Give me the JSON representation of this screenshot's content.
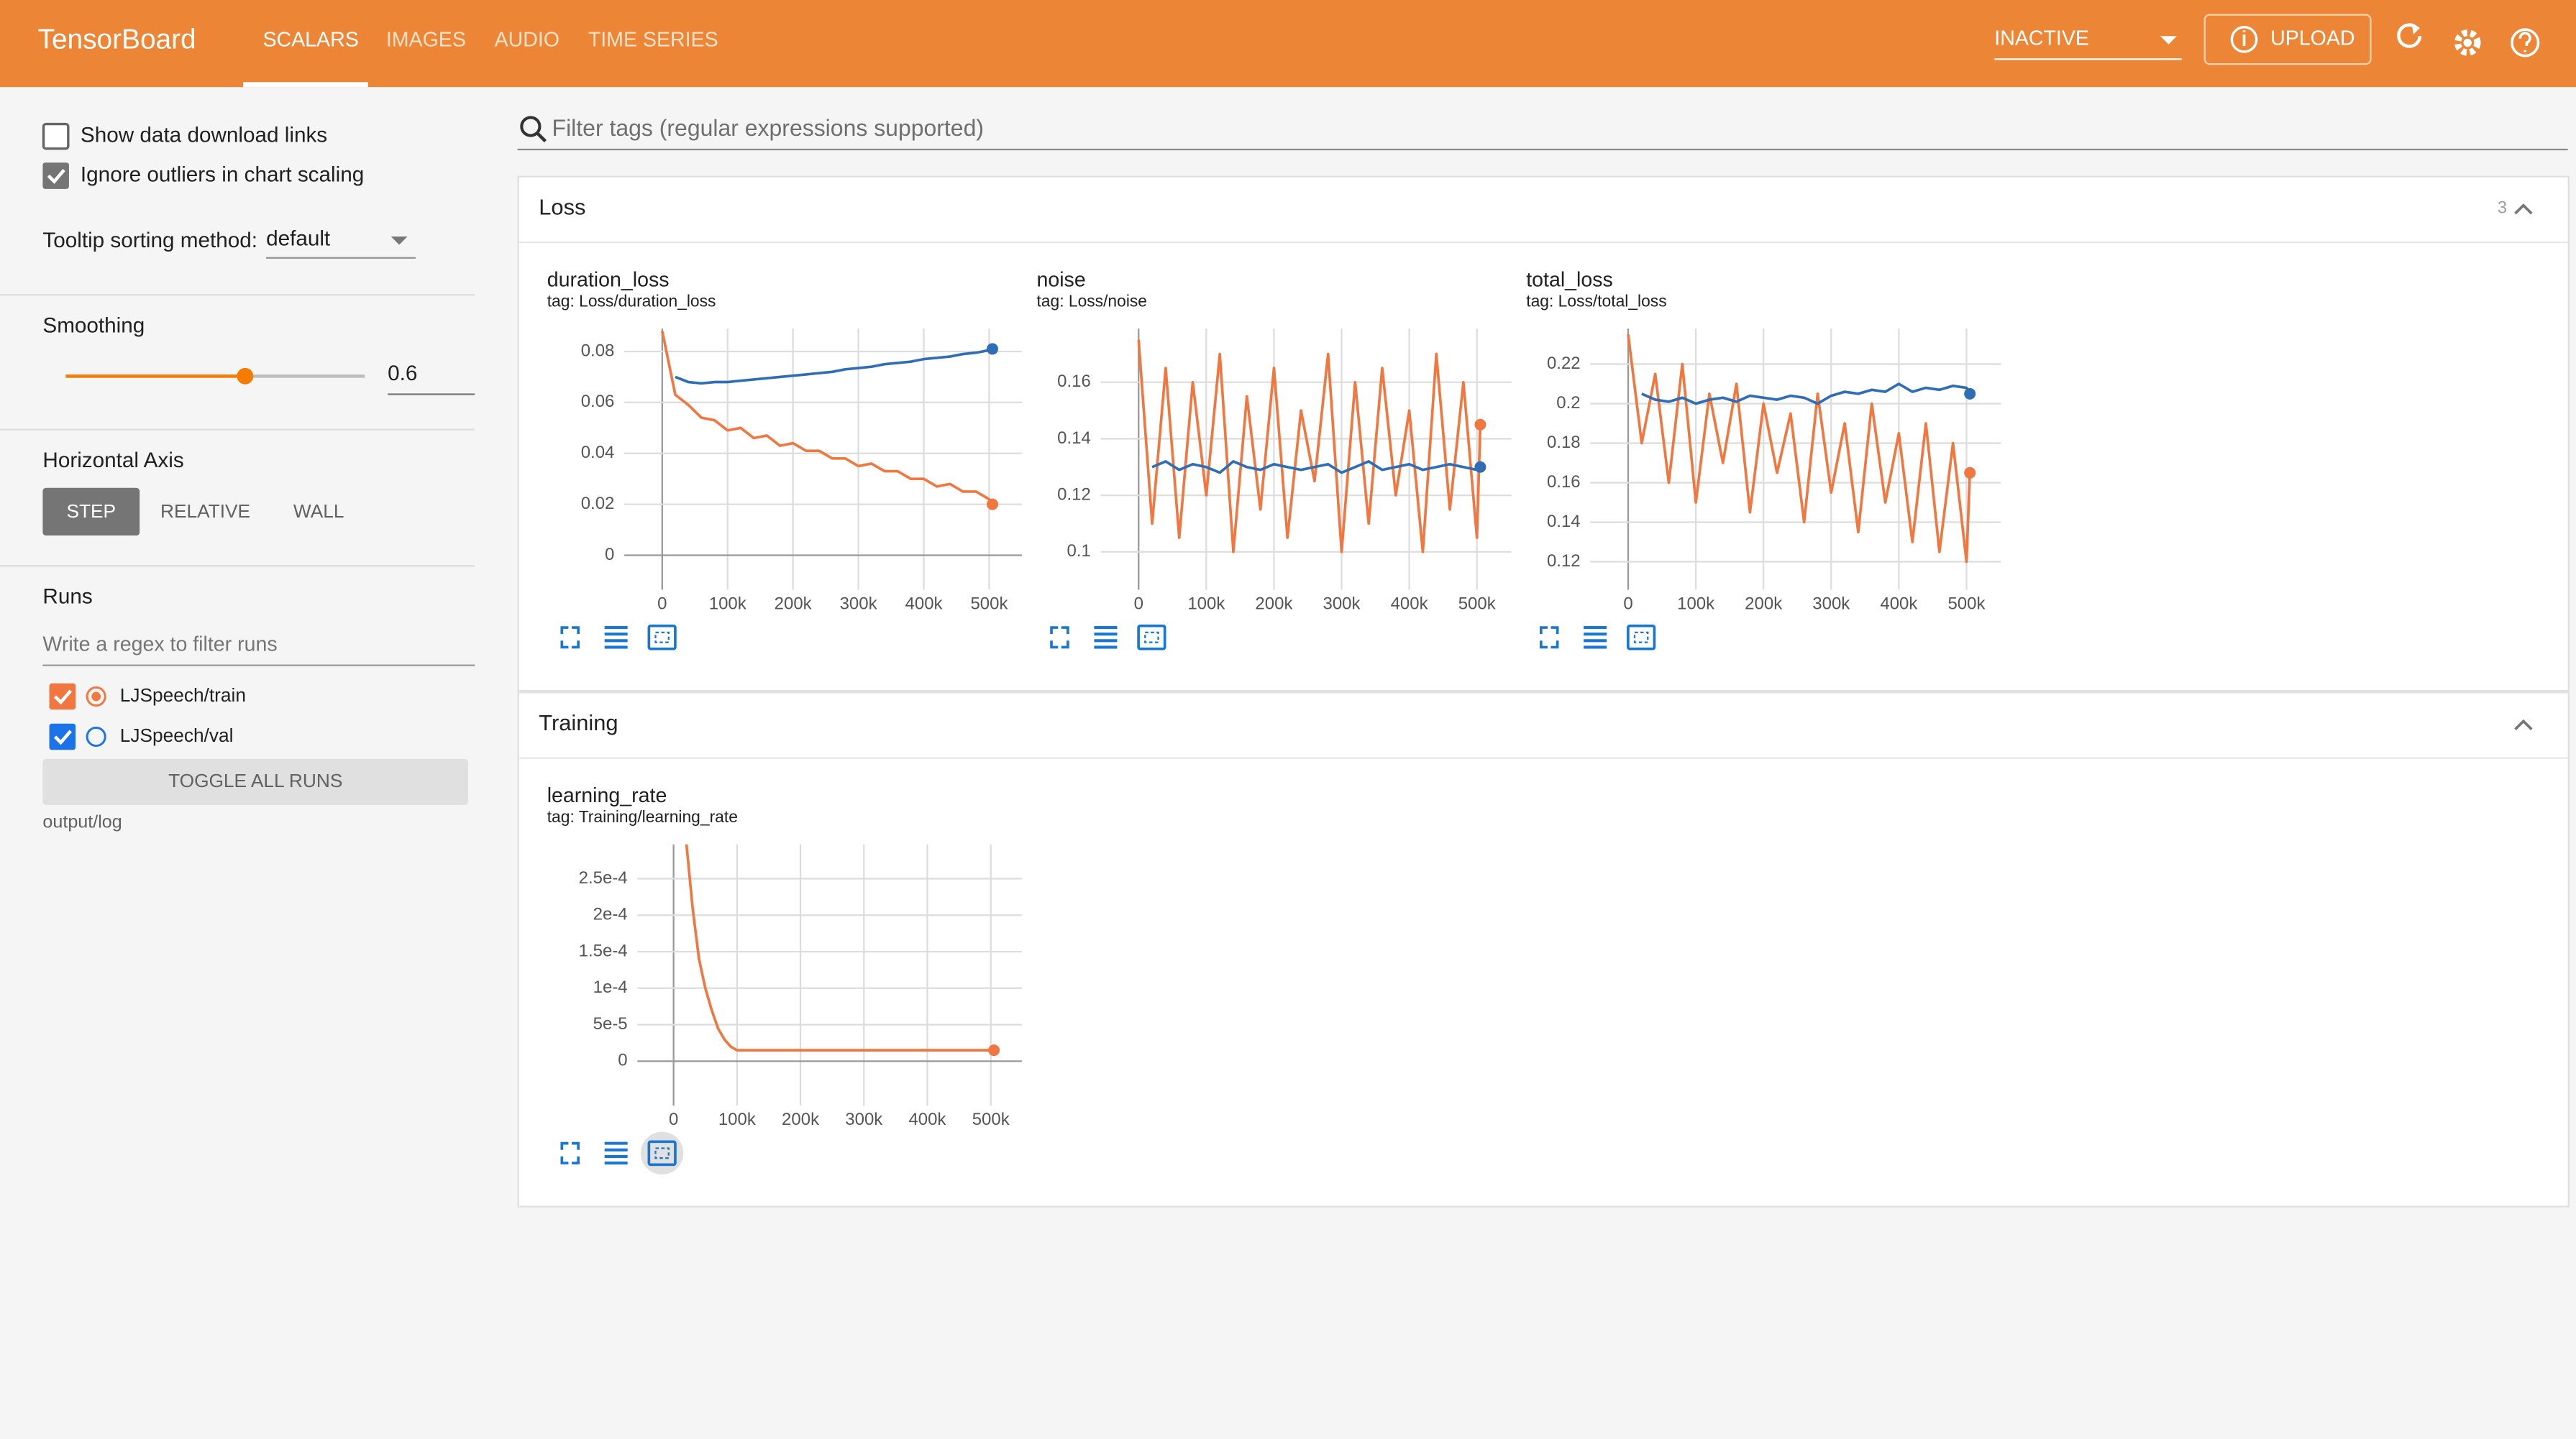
{
  "header": {
    "title": "TensorBoard",
    "tabs": [
      "SCALARS",
      "IMAGES",
      "AUDIO",
      "TIME SERIES"
    ],
    "status": "INACTIVE",
    "upload": "UPLOAD"
  },
  "sidebar": {
    "show_download": "Show data download links",
    "ignore_outliers": "Ignore outliers in chart scaling",
    "tooltip_label": "Tooltip sorting method:",
    "tooltip_value": "default",
    "smoothing_label": "Smoothing",
    "smoothing_value": 0.6,
    "horizontal_axis_label": "Horizontal Axis",
    "axis_options": [
      "STEP",
      "RELATIVE",
      "WALL"
    ],
    "runs_label": "Runs",
    "runs_filter_placeholder": "Write a regex to filter runs",
    "runs": [
      {
        "name": "LJSpeech/train",
        "color": "#f0773f"
      },
      {
        "name": "LJSpeech/val",
        "color": "#1a73e8"
      }
    ],
    "toggle": "TOGGLE ALL RUNS",
    "log_dir": "output/log"
  },
  "filter_placeholder": "Filter tags (regular expressions supported)",
  "sections": [
    {
      "title": "Loss",
      "count": 3,
      "charts": [
        {
          "type": "line",
          "title": "duration_loss",
          "tag": "tag: Loss/duration_loss",
          "x": [
            0,
            20000,
            40000,
            60000,
            80000,
            100000,
            120000,
            140000,
            160000,
            180000,
            200000,
            220000,
            240000,
            260000,
            280000,
            300000,
            320000,
            340000,
            360000,
            380000,
            400000,
            420000,
            440000,
            460000,
            480000,
            500000,
            505000
          ],
          "series": [
            {
              "color": "#f0773f",
              "values": [
                0.088,
                0.063,
                0.059,
                0.054,
                0.053,
                0.049,
                0.05,
                0.046,
                0.047,
                0.043,
                0.044,
                0.041,
                0.041,
                0.038,
                0.038,
                0.035,
                0.036,
                0.033,
                0.033,
                0.03,
                0.03,
                0.027,
                0.028,
                0.025,
                0.025,
                0.022,
                0.02
              ]
            },
            {
              "color": "#2f6db5",
              "values": [
                null,
                0.07,
                0.068,
                0.0675,
                0.068,
                0.068,
                0.0685,
                0.069,
                0.0695,
                0.07,
                0.0705,
                0.071,
                0.0715,
                0.072,
                0.073,
                0.0735,
                0.074,
                0.075,
                0.0755,
                0.076,
                0.077,
                0.0775,
                0.078,
                0.079,
                0.0795,
                0.0805,
                0.081
              ]
            }
          ],
          "xlim": [
            -58000,
            550000
          ],
          "ylim": [
            -0.0103,
            0.089
          ],
          "xticks": [
            0,
            {
              "value": 100000,
              "label": "100k"
            },
            {
              "value": 200000,
              "label": "200k"
            },
            {
              "value": 300000,
              "label": "300k"
            },
            {
              "value": 400000,
              "label": "400k"
            },
            {
              "value": 500000,
              "label": "500k"
            }
          ],
          "yticks": [
            0,
            0.02,
            0.04,
            0.06,
            0.08
          ],
          "grid": true
        },
        {
          "type": "line",
          "title": "noise",
          "tag": "tag: Loss/noise",
          "x": [
            0,
            20000,
            40000,
            60000,
            80000,
            100000,
            120000,
            140000,
            160000,
            180000,
            200000,
            220000,
            240000,
            260000,
            280000,
            300000,
            320000,
            340000,
            360000,
            380000,
            400000,
            420000,
            440000,
            460000,
            480000,
            500000,
            505000
          ],
          "series": [
            {
              "color": "#f0773f",
              "values": [
                0.175,
                0.11,
                0.165,
                0.105,
                0.16,
                0.12,
                0.17,
                0.1,
                0.155,
                0.115,
                0.165,
                0.105,
                0.15,
                0.125,
                0.17,
                0.1,
                0.16,
                0.11,
                0.165,
                0.12,
                0.15,
                0.1,
                0.17,
                0.115,
                0.16,
                0.105,
                0.145
              ]
            },
            {
              "color": "#2f6db5",
              "values": [
                null,
                0.13,
                0.132,
                0.129,
                0.131,
                0.13,
                0.128,
                0.132,
                0.13,
                0.129,
                0.131,
                0.13,
                0.129,
                0.13,
                0.131,
                0.128,
                0.13,
                0.132,
                0.129,
                0.13,
                0.131,
                0.129,
                0.13,
                0.131,
                0.13,
                0.129,
                0.13
              ]
            }
          ],
          "xlim": [
            -56000,
            551000
          ],
          "ylim": [
            0.0895,
            0.179
          ],
          "xticks": [
            0,
            {
              "value": 100000,
              "label": "100k"
            },
            {
              "value": 200000,
              "label": "200k"
            },
            {
              "value": 300000,
              "label": "300k"
            },
            {
              "value": 400000,
              "label": "400k"
            },
            {
              "value": 500000,
              "label": "500k"
            }
          ],
          "yticks": [
            0.1,
            0.12,
            0.14,
            0.16
          ],
          "grid": true
        },
        {
          "type": "line",
          "title": "total_loss",
          "tag": "tag: Loss/total_loss",
          "x": [
            0,
            20000,
            40000,
            60000,
            80000,
            100000,
            120000,
            140000,
            160000,
            180000,
            200000,
            220000,
            240000,
            260000,
            280000,
            300000,
            320000,
            340000,
            360000,
            380000,
            400000,
            420000,
            440000,
            460000,
            480000,
            500000,
            505000
          ],
          "series": [
            {
              "color": "#f0773f",
              "values": [
                0.235,
                0.18,
                0.215,
                0.16,
                0.22,
                0.15,
                0.205,
                0.17,
                0.21,
                0.145,
                0.2,
                0.165,
                0.195,
                0.14,
                0.205,
                0.155,
                0.19,
                0.135,
                0.2,
                0.15,
                0.185,
                0.13,
                0.19,
                0.125,
                0.18,
                0.12,
                0.165
              ]
            },
            {
              "color": "#2f6db5",
              "values": [
                null,
                0.205,
                0.202,
                0.201,
                0.203,
                0.2,
                0.202,
                0.203,
                0.201,
                0.204,
                0.203,
                0.202,
                0.204,
                0.203,
                0.2,
                0.204,
                0.206,
                0.205,
                0.207,
                0.206,
                0.21,
                0.206,
                0.208,
                0.207,
                0.209,
                0.208,
                0.205
              ]
            }
          ],
          "xlim": [
            -56000,
            551000
          ],
          "ylim": [
            0.11,
            0.238
          ],
          "xticks": [
            0,
            {
              "value": 100000,
              "label": "100k"
            },
            {
              "value": 200000,
              "label": "200k"
            },
            {
              "value": 300000,
              "label": "300k"
            },
            {
              "value": 400000,
              "label": "400k"
            },
            {
              "value": 500000,
              "label": "500k"
            }
          ],
          "yticks": [
            0.12,
            0.14,
            0.16,
            0.18,
            0.2,
            0.22
          ],
          "grid": true
        }
      ]
    },
    {
      "title": "Training",
      "charts": [
        {
          "type": "line",
          "title": "learning_rate",
          "tag": "tag: Training/learning_rate",
          "x": [
            20000,
            30000,
            40000,
            50000,
            60000,
            70000,
            80000,
            90000,
            100000,
            200000,
            300000,
            400000,
            505000
          ],
          "series": [
            {
              "color": "#f0773f",
              "values": [
                0.0003,
                0.00021,
                0.00014,
                0.0001,
                7e-05,
                4.5e-05,
                3e-05,
                2e-05,
                1.5e-05,
                1.5e-05,
                1.5e-05,
                1.5e-05,
                1.5e-05
              ]
            }
          ],
          "xlim": [
            -57000,
            549000
          ],
          "ylim": [
            -4.95e-05,
            0.000297
          ],
          "xticks": [
            0,
            {
              "value": 100000,
              "label": "100k"
            },
            {
              "value": 200000,
              "label": "200k"
            },
            {
              "value": 300000,
              "label": "300k"
            },
            {
              "value": 400000,
              "label": "400k"
            },
            {
              "value": 500000,
              "label": "500k"
            }
          ],
          "yticks": [
            0,
            {
              "value": 5e-05,
              "label": "5e-5"
            },
            {
              "value": 0.0001,
              "label": "1e-4"
            },
            {
              "value": 0.00015,
              "label": "1.5e-4"
            },
            {
              "value": 0.0002,
              "label": "2e-4"
            },
            {
              "value": 0.00025,
              "label": "2.5e-4"
            }
          ],
          "grid": true
        }
      ]
    }
  ]
}
